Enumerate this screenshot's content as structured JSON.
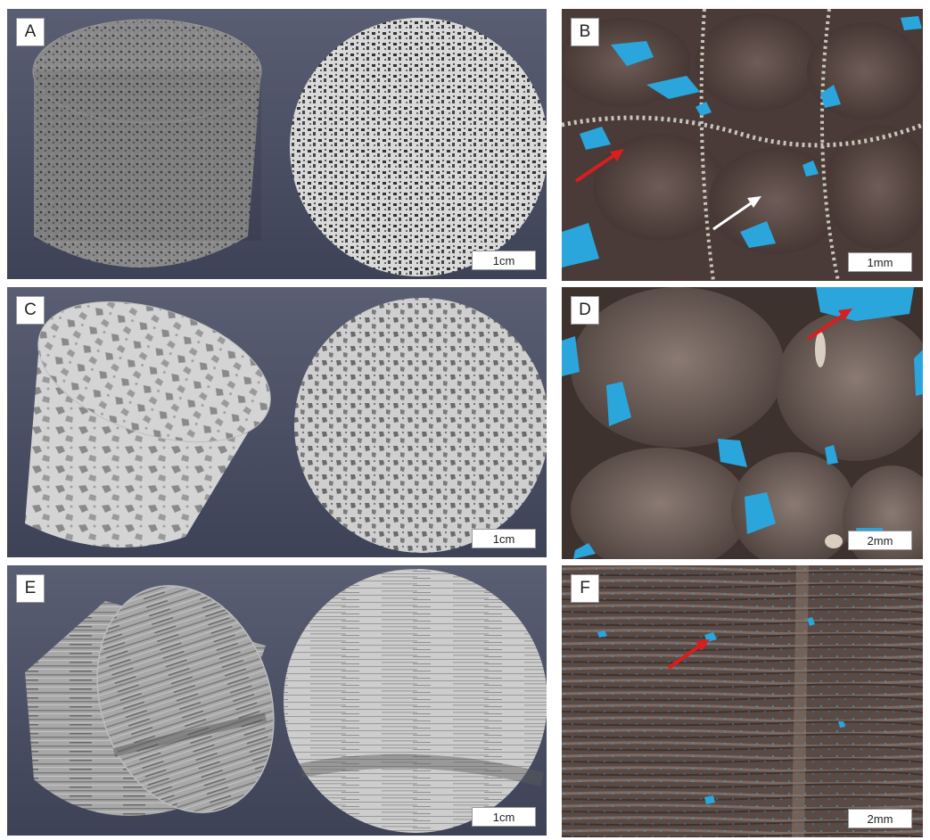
{
  "panels": {
    "a": {
      "label": "A",
      "scale": "1cm"
    },
    "b": {
      "label": "B",
      "scale": "1mm"
    },
    "c": {
      "label": "C",
      "scale": "1cm"
    },
    "d": {
      "label": "D",
      "scale": "2mm"
    },
    "e": {
      "label": "E",
      "scale": "1cm"
    },
    "f": {
      "label": "F",
      "scale": "2mm"
    }
  },
  "colors": {
    "ct_background": "#4a4f66",
    "pore_stain": "#2aa6dc",
    "arrow_red": "#d81e1e",
    "arrow_white": "#ffffff"
  }
}
